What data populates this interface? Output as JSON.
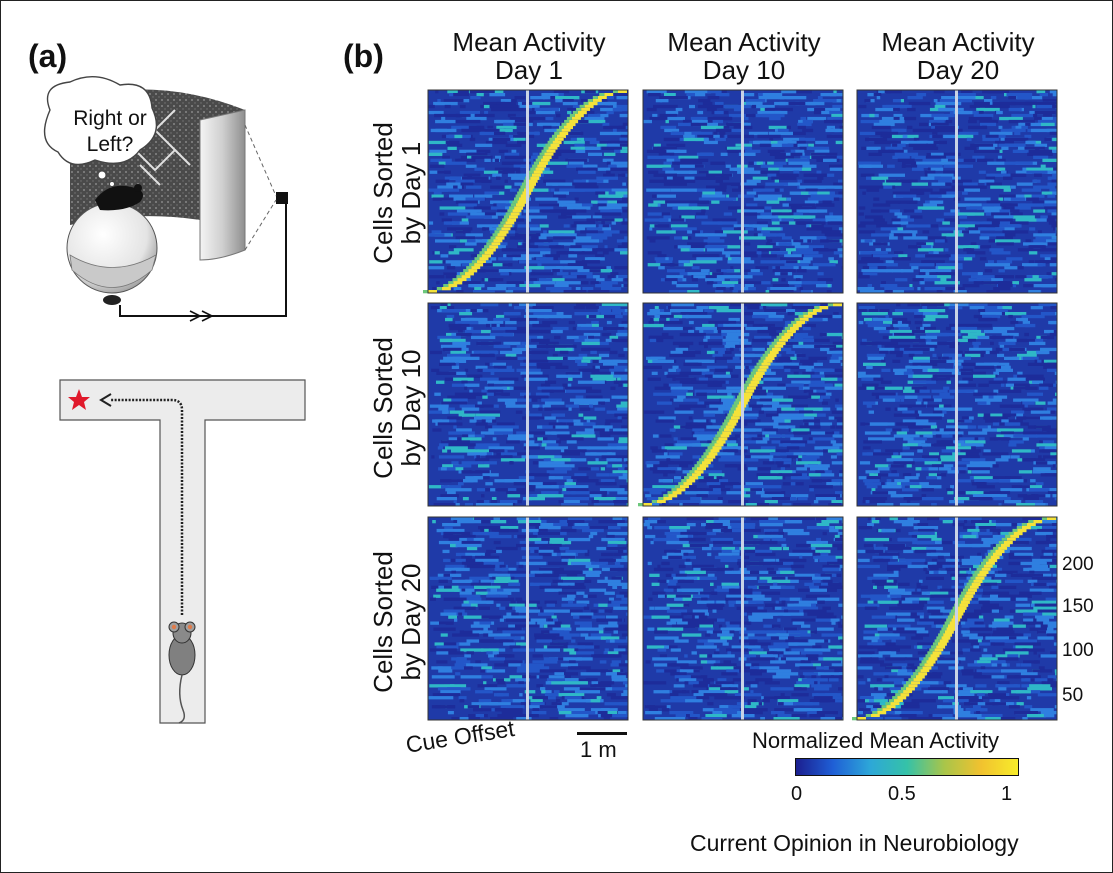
{
  "panel_a": {
    "label": "(a)",
    "thought_bubble": [
      "Right or",
      "Left?"
    ]
  },
  "panel_b": {
    "label": "(b)",
    "column_titles": [
      [
        "Mean Activity",
        "Day 1"
      ],
      [
        "Mean Activity",
        "Day 10"
      ],
      [
        "Mean Activity",
        "Day 20"
      ]
    ],
    "row_titles": [
      [
        "Cells Sorted",
        "by Day 1"
      ],
      [
        "Cells Sorted",
        "by Day 10"
      ],
      [
        "Cells Sorted",
        "by Day 20"
      ]
    ],
    "diagonal_panels": [
      [
        0,
        0
      ],
      [
        1,
        1
      ],
      [
        2,
        2
      ]
    ],
    "y_ticks": [
      "200",
      "150",
      "100",
      "50"
    ],
    "cue_offset_label": "Cue Offset",
    "scale_bar_label": "1 m",
    "colorbar": {
      "title": "Normalized Mean Activity",
      "ticks": [
        "0",
        "0.5",
        "1"
      ],
      "colors": [
        "#1b1f8f",
        "#1f5fd6",
        "#2da7d8",
        "#35c2a8",
        "#a8c54a",
        "#f1c22f",
        "#f7ec2a"
      ]
    }
  },
  "footer": {
    "journal": "Current Opinion in Neurobiology"
  }
}
